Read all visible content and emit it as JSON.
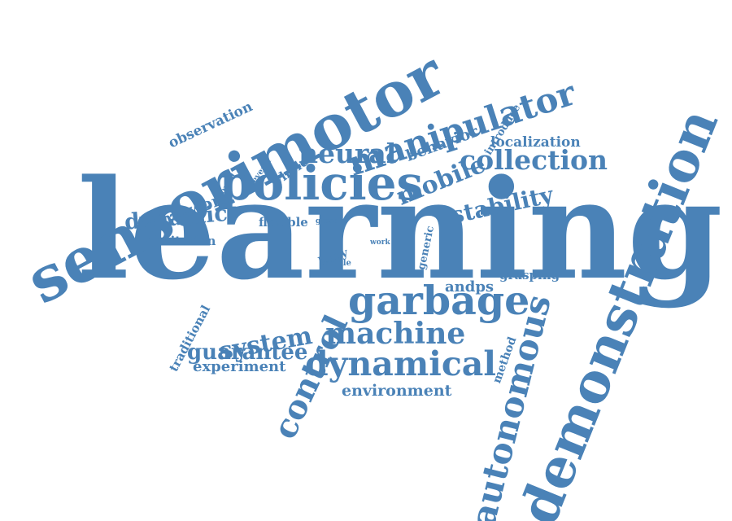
{
  "word_color": "#4a82b7",
  "background": "#ffffff",
  "words": [
    {
      "text": "learning"
    },
    {
      "text": "sensorimotor"
    },
    {
      "text": "demonstration"
    },
    {
      "text": "policies"
    },
    {
      "text": "manipulator"
    },
    {
      "text": "garbage"
    },
    {
      "text": "autonomous"
    },
    {
      "text": "control"
    },
    {
      "text": "dynamical"
    },
    {
      "text": "machine"
    },
    {
      "text": "collection"
    },
    {
      "text": "neural"
    },
    {
      "text": "mobile"
    },
    {
      "text": "stability"
    },
    {
      "text": "system"
    },
    {
      "text": "dynamic"
    },
    {
      "text": "guarantee"
    },
    {
      "text": "environment"
    },
    {
      "text": "localization"
    },
    {
      "text": "behavior"
    },
    {
      "text": "network"
    },
    {
      "text": "experiment"
    },
    {
      "text": "observation"
    },
    {
      "text": "andps"
    },
    {
      "text": "imitation"
    },
    {
      "text": "flexible"
    },
    {
      "text": "whole"
    },
    {
      "text": "introduce"
    },
    {
      "text": "grasping"
    },
    {
      "text": "traditional"
    },
    {
      "text": "method"
    },
    {
      "text": "generic"
    },
    {
      "text": "body"
    },
    {
      "text": "stable"
    },
    {
      "text": "several"
    },
    {
      "text": "ground"
    },
    {
      "text": "grasp"
    },
    {
      "text": "work"
    }
  ]
}
